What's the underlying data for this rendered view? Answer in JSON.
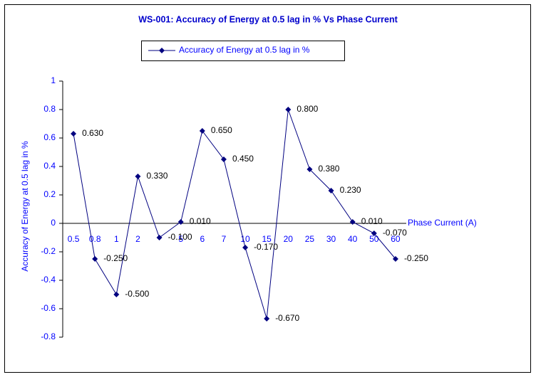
{
  "chart_data": {
    "type": "line",
    "title": "WS-001: Accuracy of Energy at 0.5 lag in % Vs Phase Current",
    "x_label": "Phase Current (A)",
    "y_label": "Accuracy of Energy at 0.5 lag in %",
    "categories": [
      "0.5",
      "0.8",
      "1",
      "2",
      null,
      "5",
      "6",
      "7",
      "10",
      "15",
      "20",
      "25",
      "30",
      "40",
      "50",
      "60"
    ],
    "series": [
      {
        "name": "Accuracy of Energy at 0.5 lag in %",
        "color": "#000080",
        "values": [
          0.63,
          -0.25,
          -0.5,
          0.33,
          -0.1,
          0.01,
          0.65,
          0.45,
          -0.17,
          -0.67,
          0.8,
          0.38,
          0.23,
          0.01,
          -0.07,
          -0.25
        ],
        "value_labels": [
          "0.630",
          "-0.250",
          "-0.500",
          "0.330",
          "-0.100",
          "0.010",
          "0.650",
          "0.450",
          "-0.170",
          "-0.670",
          "0.800",
          "0.380",
          "0.230",
          "0.010",
          "-0.070",
          "-0.250"
        ]
      }
    ],
    "ylim": [
      -0.8,
      1
    ],
    "yticks": [
      -0.8,
      -0.6,
      -0.4,
      -0.2,
      0,
      0.2,
      0.4,
      0.6,
      0.8,
      1
    ],
    "legend": "top"
  }
}
